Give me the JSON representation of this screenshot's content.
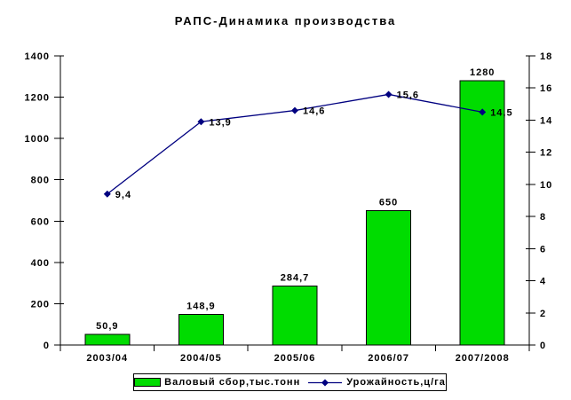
{
  "chart_data": {
    "type": "bar+line combo",
    "title": "РАПС-Динамика производства",
    "categories": [
      "2003/04",
      "2004/05",
      "2005/06",
      "2006/07",
      "2007/2008"
    ],
    "series": [
      {
        "name": "Валовый сбор,тыс.тонн",
        "type": "bar",
        "axis": "left",
        "color": "#00dc00",
        "values": [
          50.9,
          148.9,
          284.7,
          650,
          1280
        ],
        "labels": [
          "50,9",
          "148,9",
          "284,7",
          "650",
          "1280"
        ]
      },
      {
        "name": "Урожайность,ц/га",
        "type": "line",
        "axis": "right",
        "color": "#000080",
        "marker": "diamond",
        "values": [
          9.4,
          13.9,
          14.6,
          15.6,
          14.5
        ],
        "labels": [
          "9,4",
          "13,9",
          "14,6",
          "15,6",
          "14,5"
        ]
      }
    ],
    "left_axis": {
      "min": 0,
      "max": 1400,
      "step": 200,
      "ticks": [
        "0",
        "200",
        "400",
        "600",
        "800",
        "1000",
        "1200",
        "1400"
      ]
    },
    "right_axis": {
      "min": 0,
      "max": 18,
      "step": 2,
      "ticks": [
        "0",
        "2",
        "4",
        "6",
        "8",
        "10",
        "12",
        "14",
        "16",
        "18"
      ]
    },
    "grid": false,
    "legend_position": "bottom",
    "axis_color": "#000000",
    "text_color": "#000000",
    "background": "#ffffff"
  }
}
